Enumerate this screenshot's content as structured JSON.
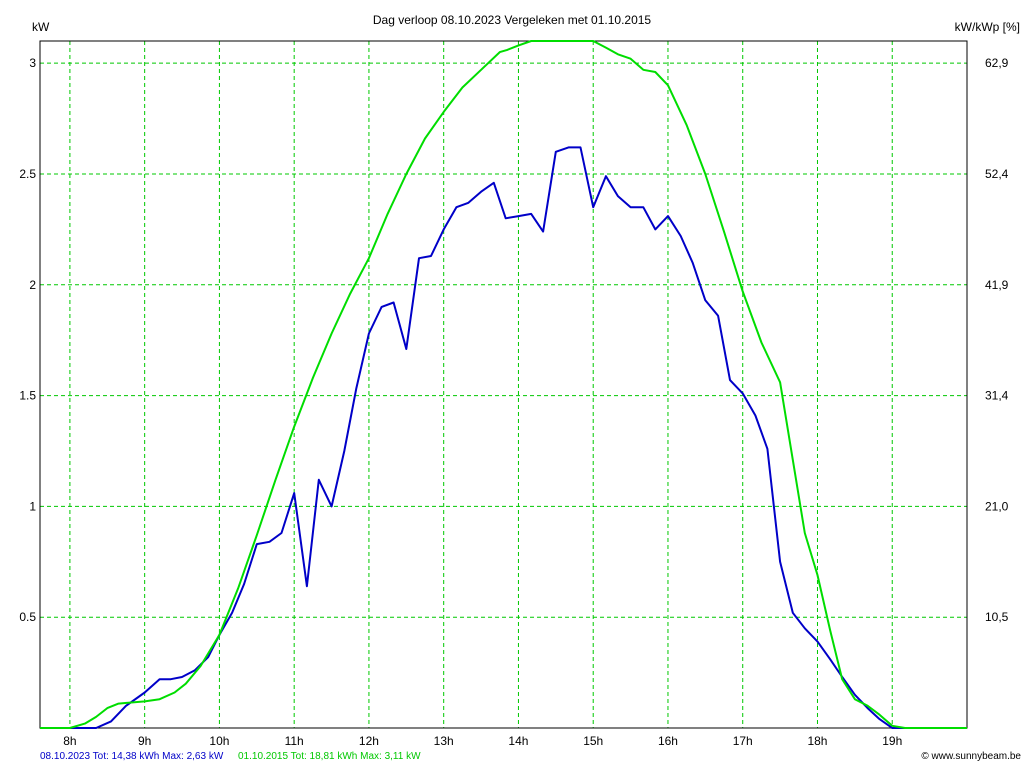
{
  "chart_data": {
    "type": "line",
    "title": "Dag  verloop 08.10.2023   Vergeleken met 01.10.2015",
    "ylabel_left": "kW",
    "ylabel_right": "kW/kWp [%]",
    "ylim": [
      0,
      3.1
    ],
    "xlim": [
      7.6,
      20.0
    ],
    "x_ticks": [
      8,
      9,
      10,
      11,
      12,
      13,
      14,
      15,
      16,
      17,
      18,
      19
    ],
    "x_tick_labels": [
      "8h",
      "9h",
      "10h",
      "11h",
      "12h",
      "13h",
      "14h",
      "15h",
      "16h",
      "17h",
      "18h",
      "19h"
    ],
    "y_ticks": [
      0.5,
      1,
      1.5,
      2,
      2.5,
      3
    ],
    "y_tick_labels": [
      "0.5",
      "1",
      "1.5",
      "2",
      "2.5",
      "3"
    ],
    "y_right_tick_labels": [
      "10,5",
      "21,0",
      "31,4",
      "41,9",
      "52,4",
      "62,9"
    ],
    "grid": true,
    "series": [
      {
        "name": "08.10.2023",
        "color": "#0000c8",
        "x": [
          7.6,
          8.0,
          8.25,
          8.35,
          8.55,
          8.75,
          9.0,
          9.2,
          9.35,
          9.5,
          9.67,
          9.85,
          10.0,
          10.17,
          10.33,
          10.5,
          10.67,
          10.83,
          11.0,
          11.17,
          11.33,
          11.5,
          11.67,
          11.83,
          12.0,
          12.17,
          12.33,
          12.5,
          12.67,
          12.83,
          13.0,
          13.17,
          13.33,
          13.5,
          13.67,
          13.83,
          14.0,
          14.17,
          14.33,
          14.5,
          14.67,
          14.83,
          15.0,
          15.17,
          15.33,
          15.5,
          15.67,
          15.83,
          16.0,
          16.17,
          16.33,
          16.5,
          16.67,
          16.83,
          17.0,
          17.17,
          17.33,
          17.5,
          17.67,
          17.83,
          18.0,
          18.17,
          18.33,
          18.5,
          18.67,
          18.83,
          19.0,
          19.17,
          19.5,
          20.0
        ],
        "y": [
          0.0,
          0.0,
          0.0,
          0.0,
          0.03,
          0.1,
          0.16,
          0.22,
          0.22,
          0.23,
          0.26,
          0.32,
          0.42,
          0.52,
          0.65,
          0.83,
          0.84,
          0.88,
          1.06,
          0.64,
          1.12,
          1.0,
          1.25,
          1.53,
          1.78,
          1.9,
          1.92,
          1.71,
          2.12,
          2.13,
          2.25,
          2.35,
          2.37,
          2.42,
          2.46,
          2.3,
          2.31,
          2.32,
          2.24,
          2.6,
          2.62,
          2.62,
          2.35,
          2.49,
          2.4,
          2.35,
          2.35,
          2.25,
          2.31,
          2.22,
          2.1,
          1.93,
          1.86,
          1.57,
          1.51,
          1.41,
          1.26,
          0.75,
          0.52,
          0.45,
          0.39,
          0.31,
          0.23,
          0.15,
          0.09,
          0.04,
          0.0,
          0.0,
          0.0,
          0.0
        ]
      },
      {
        "name": "01.10.2015",
        "color": "#00dd00",
        "x": [
          7.6,
          8.0,
          8.2,
          8.35,
          8.5,
          8.65,
          9.0,
          9.2,
          9.4,
          9.55,
          9.75,
          10.0,
          10.25,
          10.5,
          10.75,
          11.0,
          11.25,
          11.5,
          11.75,
          12.0,
          12.25,
          12.5,
          12.75,
          13.0,
          13.25,
          13.5,
          13.75,
          13.85,
          14.0,
          14.17,
          14.33,
          14.5,
          14.67,
          14.83,
          15.0,
          15.17,
          15.33,
          15.5,
          15.67,
          15.83,
          16.0,
          16.25,
          16.5,
          16.75,
          17.0,
          17.25,
          17.5,
          17.67,
          17.83,
          18.0,
          18.17,
          18.33,
          18.5,
          18.67,
          18.83,
          19.0,
          19.17,
          20.0
        ],
        "y": [
          0.0,
          0.0,
          0.02,
          0.05,
          0.09,
          0.11,
          0.12,
          0.13,
          0.16,
          0.2,
          0.28,
          0.42,
          0.63,
          0.87,
          1.12,
          1.36,
          1.58,
          1.78,
          1.96,
          2.12,
          2.32,
          2.5,
          2.66,
          2.78,
          2.89,
          2.97,
          3.05,
          3.06,
          3.08,
          3.1,
          3.12,
          3.12,
          3.12,
          3.12,
          3.1,
          3.07,
          3.04,
          3.02,
          2.97,
          2.96,
          2.9,
          2.72,
          2.5,
          2.24,
          1.97,
          1.74,
          1.56,
          1.21,
          0.88,
          0.69,
          0.44,
          0.22,
          0.13,
          0.1,
          0.06,
          0.01,
          0.0,
          0.0
        ]
      }
    ]
  },
  "footer": {
    "series1_text": "08.10.2023 Tot: 14,38 kWh Max: 2,63 kW",
    "series2_text": "01.10.2015 Tot: 18,81 kWh Max: 3,11 kW",
    "credit": "© www.sunnybeam.be"
  }
}
